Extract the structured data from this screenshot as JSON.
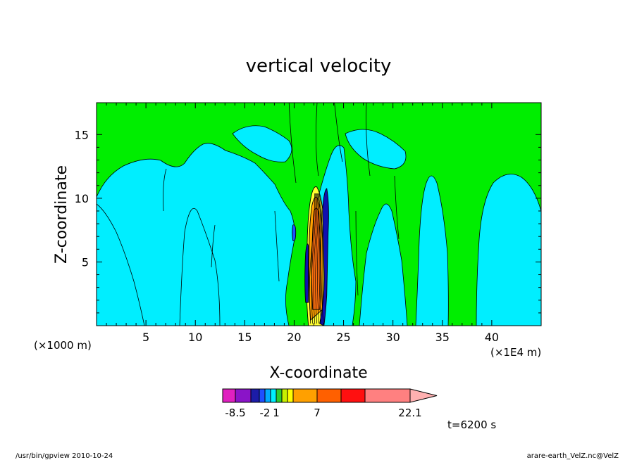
{
  "chart_data": {
    "type": "heatmap",
    "title": "vertical velocity",
    "xlabel": "X-coordinate",
    "ylabel": "Z-coordinate",
    "x_unit_label": "(×1E4 m)",
    "y_unit_label": "(×1000 m)",
    "xlim": [
      0,
      45
    ],
    "ylim": [
      0,
      17.5
    ],
    "x_ticks": [
      "5",
      "10",
      "15",
      "20",
      "25",
      "30",
      "35",
      "40"
    ],
    "y_ticks": [
      "5",
      "10",
      "15"
    ],
    "colorbar": {
      "tick_labels": [
        "-8.5",
        "-2",
        "1",
        "7",
        "22.1"
      ],
      "colors": [
        "#e020c0",
        "#8a14c8",
        "#1c1ca8",
        "#1e50ff",
        "#00aaff",
        "#00f0ff",
        "#2ecc2e",
        "#c8f000",
        "#ffff00",
        "#ffa000",
        "#ff6000",
        "#ff1010",
        "#ff8080",
        "#ffb0b0"
      ]
    },
    "field_colors": {
      "weak_negative": "#00eeff",
      "weak_positive": "#00ee00",
      "updraft_core": "#ff7010",
      "updraft_edge": "#ffa000",
      "updraft_fringe": "#ffff30",
      "downdraft": "#1010b0"
    },
    "core_column_x": 22.3,
    "annotation": "t=6200 s"
  },
  "footer": {
    "left": "/usr/bin/gpview  2010-10-24",
    "right": "arare-earth_VelZ.nc@VelZ"
  }
}
